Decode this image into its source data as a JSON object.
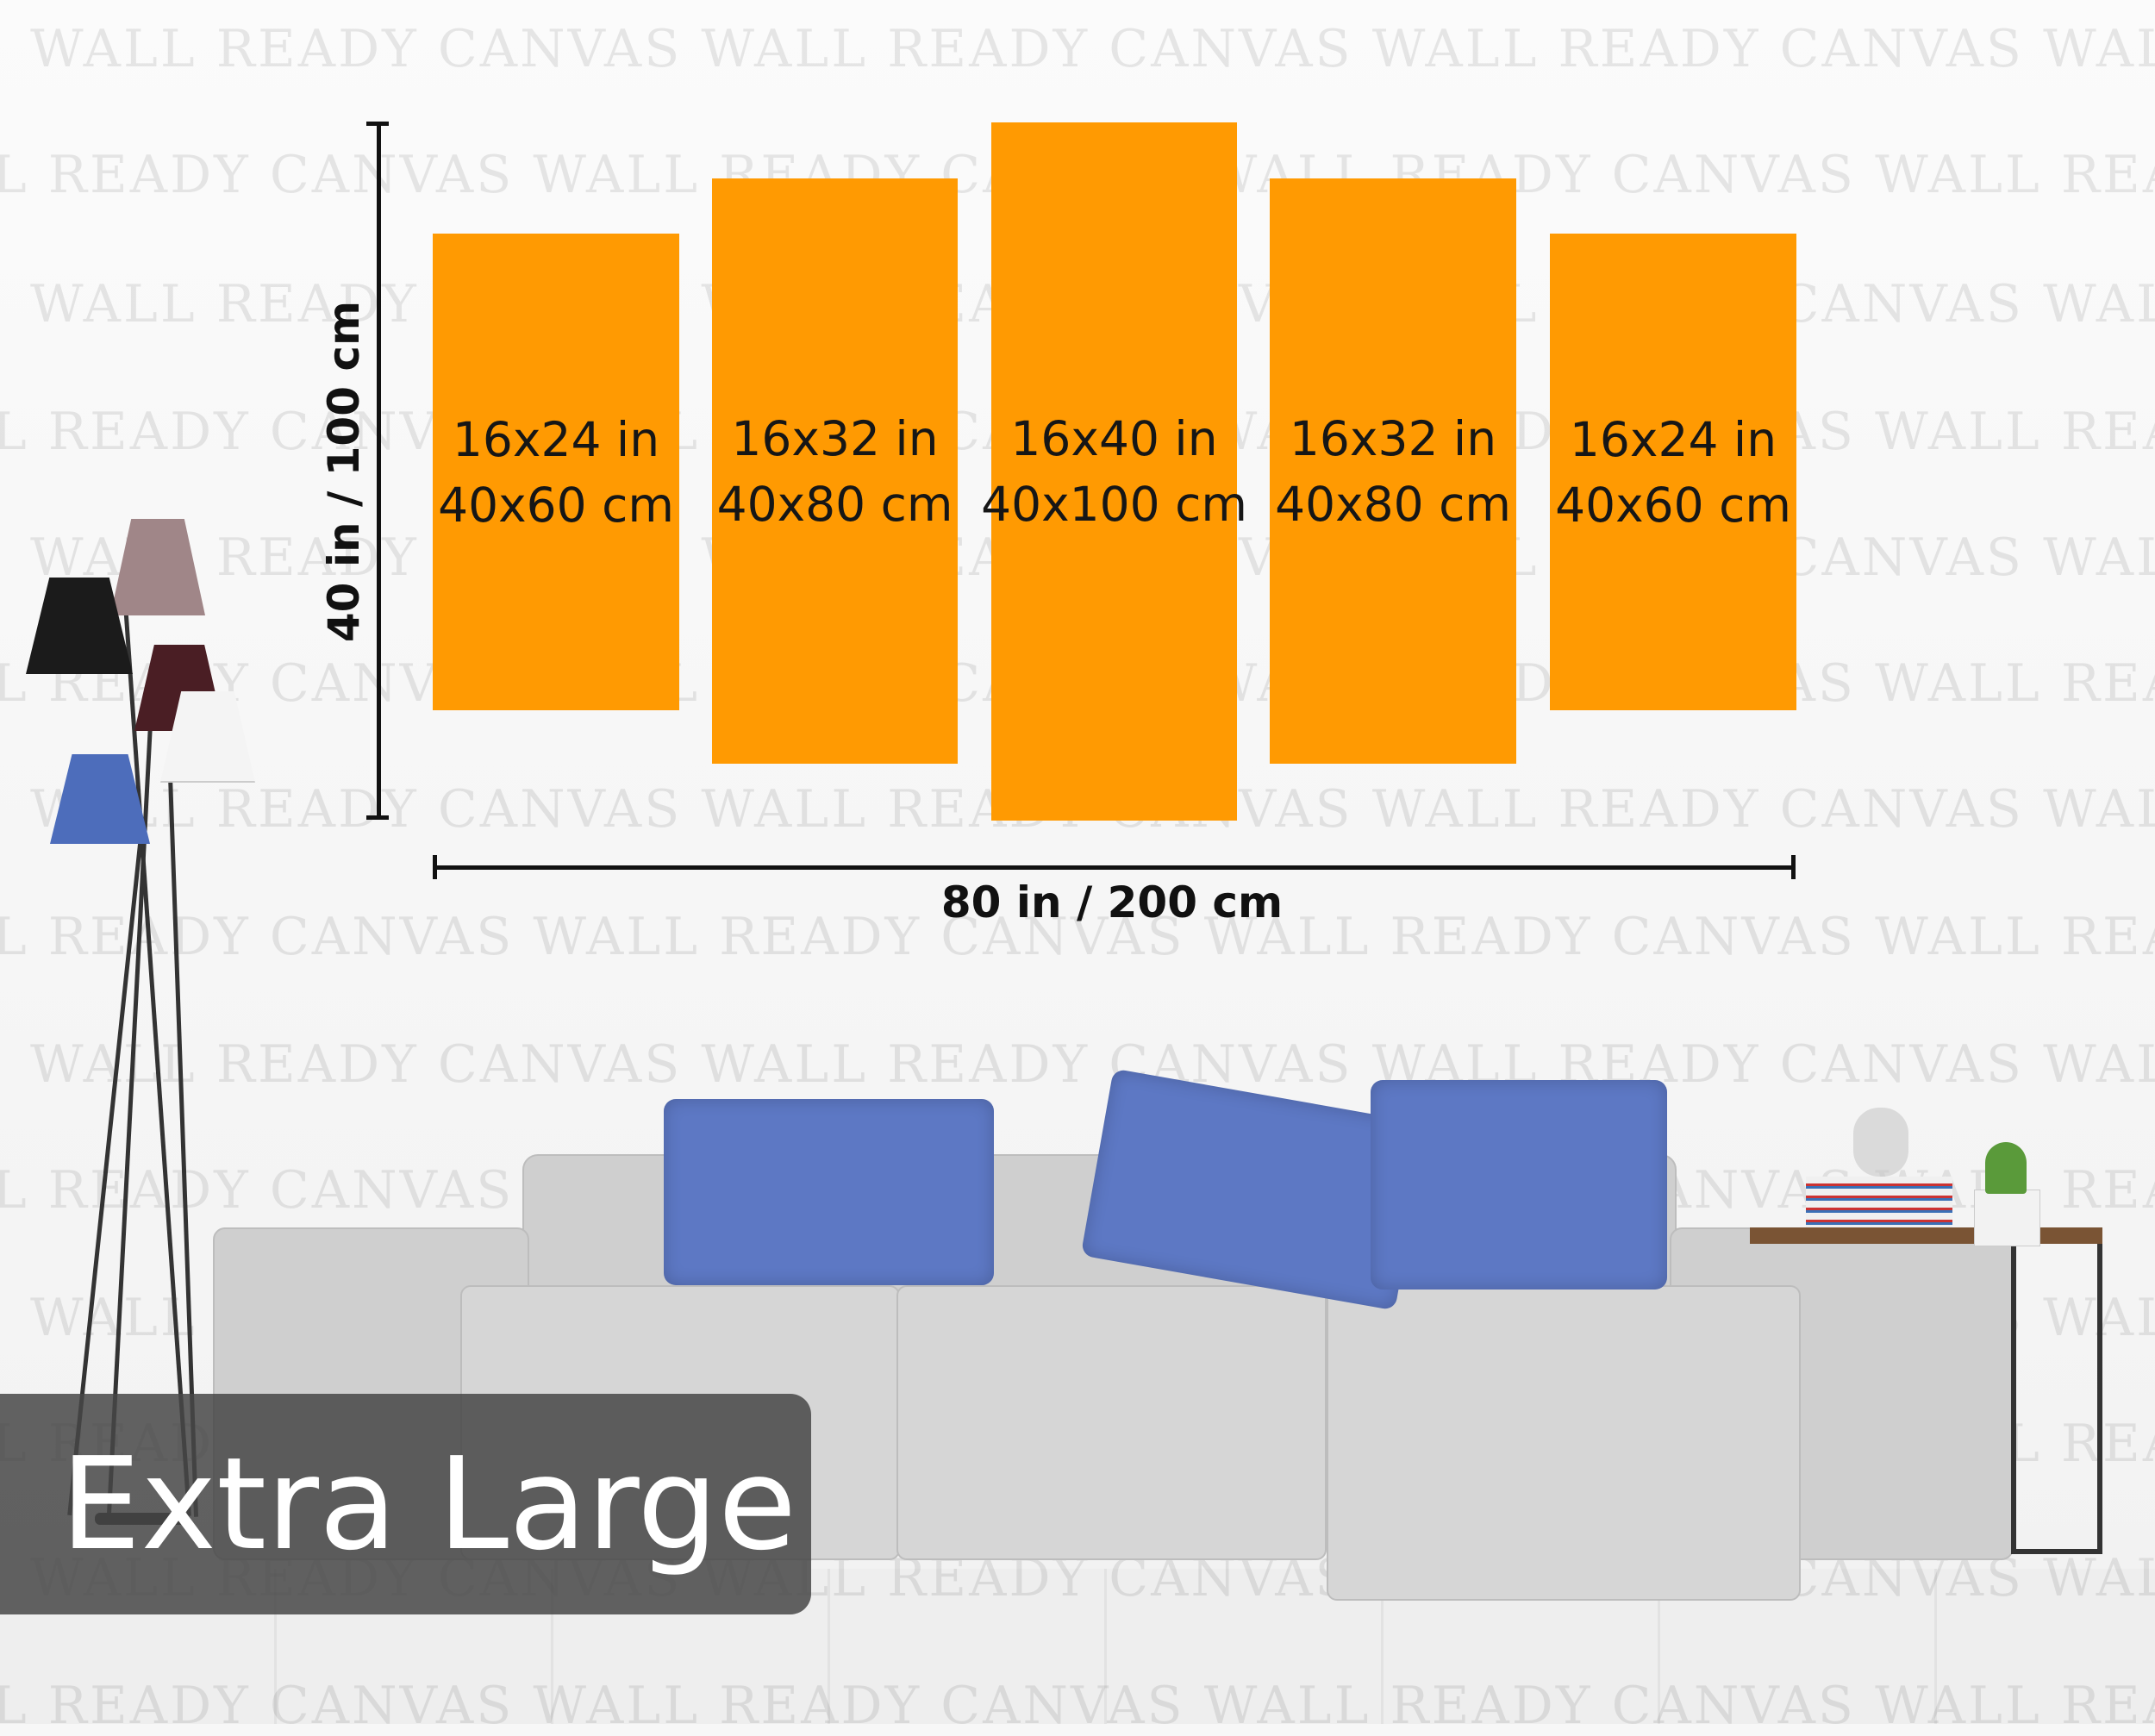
{
  "watermark_text": "WALL READY CANVAS",
  "panels": [
    {
      "in": "16x24 in",
      "cm": "40x60 cm"
    },
    {
      "in": "16x32 in",
      "cm": "40x80 cm"
    },
    {
      "in": "16x40 in",
      "cm": "40x100 cm"
    },
    {
      "in": "16x32 in",
      "cm": "40x80 cm"
    },
    {
      "in": "16x24 in",
      "cm": "40x60 cm"
    }
  ],
  "dimensions": {
    "height": "40 in / 100 cm",
    "width": "80 in / 200 cm"
  },
  "size_badge": "Extra Large",
  "colors": {
    "panel": "#ff9a02",
    "pillow": "#5d78c4",
    "sofa": "#cfcfcf",
    "badge": "#464646"
  }
}
